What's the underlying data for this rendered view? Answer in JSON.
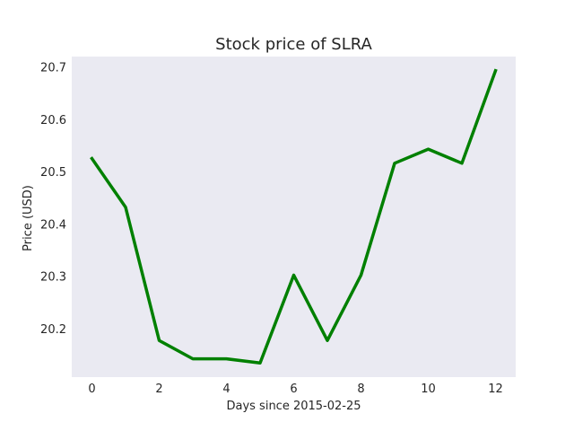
{
  "chart_data": {
    "type": "line",
    "title": "Stock price of SLRA",
    "xlabel": "Days since 2015-02-25",
    "ylabel": "Price (USD)",
    "x": [
      0,
      1,
      2,
      3,
      4,
      5,
      6,
      7,
      8,
      9,
      10,
      11,
      12
    ],
    "series": [
      {
        "values": [
          20.525,
          20.432,
          20.177,
          20.142,
          20.142,
          20.134,
          20.302,
          20.177,
          20.302,
          20.516,
          20.543,
          20.516,
          20.693
        ],
        "color": "#008000"
      }
    ],
    "xlim": [
      -0.6,
      12.6
    ],
    "ylim": [
      20.107,
      20.72
    ],
    "xticks": [
      0,
      2,
      4,
      6,
      8,
      10,
      12
    ],
    "yticks": [
      20.2,
      20.3,
      20.4,
      20.5,
      20.6,
      20.7
    ],
    "grid": false,
    "background": "#eaeaf2"
  }
}
